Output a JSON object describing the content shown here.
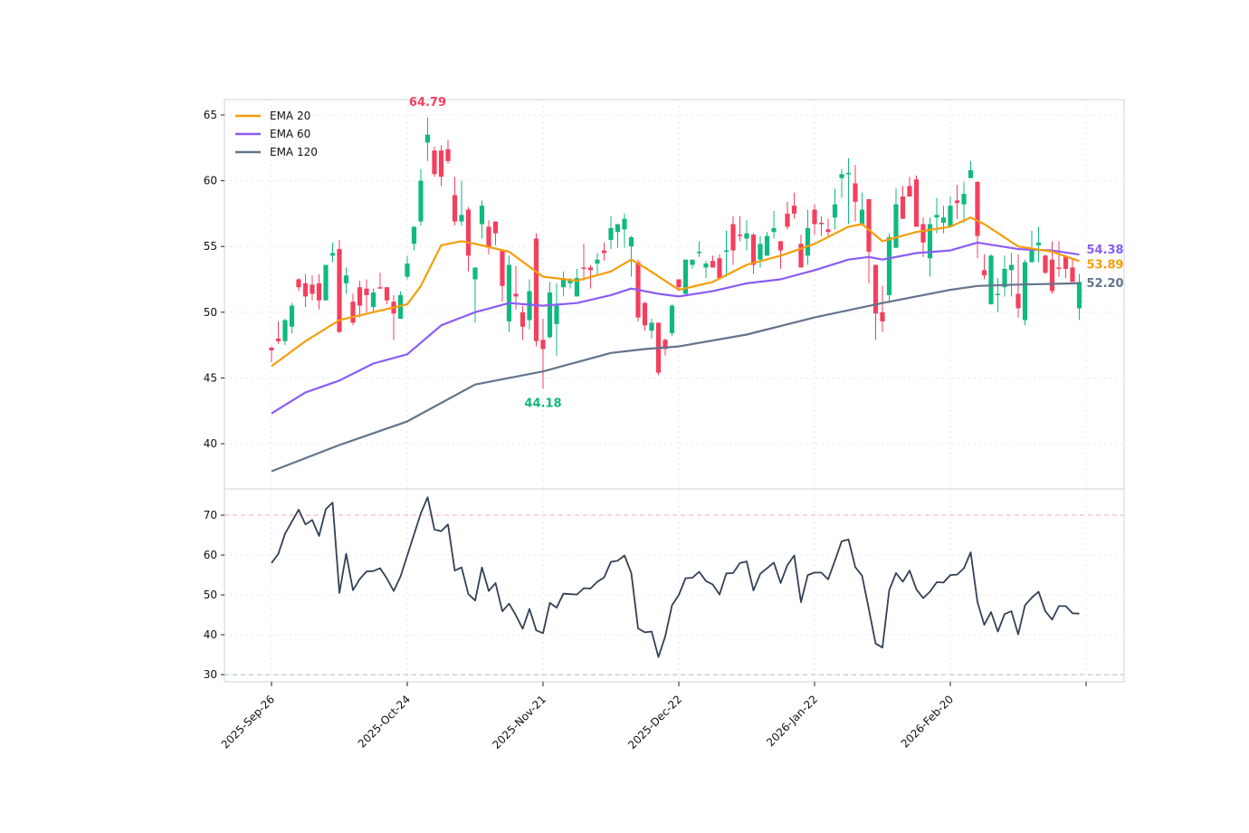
{
  "chart_data": {
    "type": "candlestick",
    "colors": {
      "up": "#10b981",
      "down": "#f43f5e",
      "ema20": "#f59e0b",
      "ema60": "#8b5cf6",
      "ema120": "#64748b",
      "rsi": "#334155",
      "rsi_overbought": "#f3a9b6",
      "rsi_oversold": "#a9bccb",
      "frame": "#cbd5e1",
      "grid": "#e5e7eb"
    },
    "price_panel": {
      "ylim": [
        36.56,
        66.17
      ],
      "yticks": [
        40,
        45,
        50,
        55,
        60,
        65
      ],
      "grid": true,
      "legend_placement": "top-left",
      "legend": [
        {
          "key": "ema20",
          "label": "EMA 20"
        },
        {
          "key": "ema60",
          "label": "EMA 60"
        },
        {
          "key": "ema120",
          "label": "EMA 120"
        }
      ],
      "candles_ohlc": [
        [
          47.3,
          47.4,
          46.2,
          47.1
        ],
        [
          48.0,
          49.3,
          47.6,
          47.8
        ],
        [
          47.8,
          49.5,
          47.5,
          49.4
        ],
        [
          48.9,
          50.7,
          48.4,
          50.5
        ],
        [
          52.5,
          52.6,
          51.6,
          51.9
        ],
        [
          52.2,
          52.9,
          50.4,
          51.2
        ],
        [
          52.1,
          52.8,
          50.9,
          51.4
        ],
        [
          52.2,
          52.9,
          50.2,
          50.9
        ],
        [
          50.9,
          53.6,
          50.9,
          53.6
        ],
        [
          54.3,
          55.3,
          53.8,
          54.5
        ],
        [
          54.8,
          55.5,
          48.4,
          48.5
        ],
        [
          52.2,
          53.4,
          51.4,
          52.8
        ],
        [
          50.8,
          51.4,
          49.0,
          49.2
        ],
        [
          51.9,
          52.4,
          49.6,
          50.5
        ],
        [
          51.8,
          52.5,
          50.0,
          51.3
        ],
        [
          50.4,
          51.8,
          50.0,
          51.5
        ],
        [
          51.9,
          53.0,
          51.8,
          51.8
        ],
        [
          51.9,
          51.9,
          50.6,
          50.9
        ],
        [
          50.8,
          51.3,
          47.9,
          49.9
        ],
        [
          49.5,
          51.6,
          49.5,
          51.3
        ],
        [
          52.7,
          54.3,
          52.5,
          53.7
        ],
        [
          55.2,
          56.5,
          54.7,
          56.5
        ],
        [
          56.9,
          60.9,
          56.6,
          60.0
        ],
        [
          62.9,
          64.79,
          61.5,
          63.5
        ],
        [
          62.3,
          62.6,
          60.3,
          60.5
        ],
        [
          62.3,
          62.7,
          59.6,
          60.3
        ],
        [
          62.4,
          63.1,
          61.3,
          61.5
        ],
        [
          58.9,
          60.3,
          56.6,
          56.9
        ],
        [
          56.9,
          60.0,
          56.6,
          57.4
        ],
        [
          57.8,
          58.0,
          53.1,
          54.3
        ],
        [
          52.5,
          53.4,
          49.2,
          53.4
        ],
        [
          56.7,
          58.5,
          55.6,
          58.1
        ],
        [
          56.5,
          57.0,
          54.4,
          54.9
        ],
        [
          56.9,
          56.9,
          55.1,
          56.0
        ],
        [
          54.7,
          54.7,
          50.8,
          52.0
        ],
        [
          49.3,
          54.3,
          48.5,
          53.6
        ],
        [
          51.4,
          53.5,
          50.2,
          51.2
        ],
        [
          50.0,
          50.5,
          47.9,
          48.9
        ],
        [
          49.4,
          52.5,
          48.7,
          51.6
        ],
        [
          55.6,
          56.0,
          47.4,
          47.8
        ],
        [
          47.9,
          49.5,
          44.18,
          47.2
        ],
        [
          48.1,
          52.3,
          48.0,
          51.5
        ],
        [
          49.1,
          52.2,
          46.7,
          50.5
        ],
        [
          51.9,
          53.1,
          51.2,
          52.6
        ],
        [
          52.2,
          52.6,
          51.8,
          52.5
        ],
        [
          51.2,
          53.3,
          51.2,
          52.6
        ],
        [
          53.4,
          55.2,
          52.4,
          53.3
        ],
        [
          53.4,
          53.6,
          51.8,
          53.2
        ],
        [
          53.7,
          54.5,
          52.8,
          54.0
        ],
        [
          54.7,
          55.3,
          53.9,
          54.5
        ],
        [
          55.5,
          57.3,
          54.8,
          56.4
        ],
        [
          56.1,
          56.7,
          54.9,
          56.7
        ],
        [
          56.3,
          57.5,
          54.9,
          57.1
        ],
        [
          55.0,
          55.8,
          52.7,
          55.7
        ],
        [
          53.8,
          54.0,
          49.3,
          49.6
        ],
        [
          50.7,
          50.8,
          48.6,
          49.0
        ],
        [
          48.6,
          49.5,
          48.0,
          49.2
        ],
        [
          49.2,
          49.2,
          45.2,
          45.4
        ],
        [
          47.9,
          48.0,
          46.7,
          47.2
        ],
        [
          48.4,
          50.6,
          48.2,
          50.5
        ],
        [
          52.5,
          52.5,
          51.6,
          51.9
        ],
        [
          51.4,
          54.0,
          51.2,
          54.0
        ],
        [
          53.6,
          54.0,
          53.3,
          54.0
        ],
        [
          54.5,
          55.4,
          54.2,
          54.6
        ],
        [
          53.4,
          53.9,
          52.6,
          53.7
        ],
        [
          53.9,
          54.3,
          53.4,
          53.4
        ],
        [
          54.1,
          54.4,
          52.6,
          52.6
        ],
        [
          54.6,
          56.2,
          52.7,
          54.7
        ],
        [
          56.7,
          57.3,
          53.6,
          54.7
        ],
        [
          55.9,
          57.3,
          55.4,
          55.8
        ],
        [
          55.6,
          57.0,
          54.7,
          56.0
        ],
        [
          55.9,
          56.0,
          52.9,
          53.6
        ],
        [
          54.0,
          55.8,
          53.4,
          55.2
        ],
        [
          54.3,
          56.1,
          54.3,
          55.8
        ],
        [
          56.1,
          57.7,
          55.6,
          56.4
        ],
        [
          55.4,
          55.4,
          53.3,
          54.7
        ],
        [
          57.5,
          58.4,
          56.3,
          56.5
        ],
        [
          58.1,
          59.1,
          57.1,
          57.5
        ],
        [
          55.2,
          55.9,
          53.4,
          53.4
        ],
        [
          54.3,
          57.8,
          53.6,
          56.4
        ],
        [
          57.8,
          58.2,
          55.9,
          56.7
        ],
        [
          56.8,
          57.3,
          55.8,
          56.7
        ],
        [
          56.3,
          57.1,
          55.8,
          56.1
        ],
        [
          57.2,
          59.4,
          56.3,
          58.2
        ],
        [
          60.2,
          60.9,
          58.7,
          60.5
        ],
        [
          60.5,
          61.7,
          56.7,
          60.6
        ],
        [
          59.8,
          61.2,
          56.9,
          58.4
        ],
        [
          56.7,
          59.1,
          56.7,
          57.8
        ],
        [
          58.6,
          58.6,
          52.2,
          54.6
        ],
        [
          53.6,
          53.6,
          47.9,
          49.9
        ],
        [
          50.0,
          52.0,
          48.5,
          49.3
        ],
        [
          51.3,
          56.0,
          50.7,
          55.7
        ],
        [
          54.9,
          59.4,
          54.9,
          58.2
        ],
        [
          58.8,
          59.6,
          57.1,
          57.1
        ],
        [
          59.6,
          60.3,
          58.8,
          58.8
        ],
        [
          60.1,
          60.4,
          56.5,
          56.5
        ],
        [
          56.7,
          57.2,
          54.2,
          55.3
        ],
        [
          54.1,
          57.2,
          52.7,
          56.7
        ],
        [
          57.2,
          58.7,
          56.0,
          57.4
        ],
        [
          56.8,
          58.1,
          56.0,
          57.2
        ],
        [
          56.5,
          58.8,
          56.5,
          58.1
        ],
        [
          58.5,
          59.7,
          57.1,
          58.3
        ],
        [
          58.2,
          59.9,
          56.8,
          59.0
        ],
        [
          60.2,
          61.5,
          60.2,
          60.8
        ],
        [
          59.9,
          60.0,
          54.1,
          55.8
        ],
        [
          53.2,
          54.4,
          52.5,
          52.8
        ],
        [
          50.6,
          54.4,
          50.6,
          54.3
        ],
        [
          51.3,
          52.6,
          50.0,
          51.4
        ],
        [
          51.9,
          54.3,
          51.2,
          53.3
        ],
        [
          53.2,
          54.5,
          51.2,
          53.6
        ],
        [
          51.4,
          54.4,
          49.6,
          50.3
        ],
        [
          49.4,
          54.0,
          49.0,
          53.8
        ],
        [
          53.8,
          56.2,
          53.8,
          54.8
        ],
        [
          55.1,
          56.5,
          53.8,
          55.3
        ],
        [
          54.3,
          54.4,
          52.9,
          53.0
        ],
        [
          54.0,
          55.4,
          51.4,
          51.6
        ],
        [
          53.4,
          55.4,
          52.7,
          53.3
        ],
        [
          54.3,
          54.3,
          52.6,
          53.3
        ],
        [
          53.4,
          54.0,
          52.3,
          52.3
        ],
        [
          50.3,
          52.9,
          49.4,
          52.3
        ]
      ],
      "ema20": [
        [
          0,
          45.9
        ],
        [
          5,
          47.8
        ],
        [
          10,
          49.4
        ],
        [
          15,
          50.0
        ],
        [
          20,
          50.6
        ],
        [
          22,
          52.0
        ],
        [
          25,
          55.1
        ],
        [
          28,
          55.4
        ],
        [
          30,
          55.2
        ],
        [
          35,
          54.6
        ],
        [
          40,
          52.7
        ],
        [
          45,
          52.4
        ],
        [
          50,
          53.1
        ],
        [
          53,
          54.0
        ],
        [
          55,
          53.4
        ],
        [
          60,
          51.7
        ],
        [
          65,
          52.3
        ],
        [
          70,
          53.6
        ],
        [
          75,
          54.3
        ],
        [
          80,
          55.2
        ],
        [
          85,
          56.5
        ],
        [
          87,
          56.7
        ],
        [
          90,
          55.4
        ],
        [
          95,
          56.1
        ],
        [
          100,
          56.5
        ],
        [
          103,
          57.2
        ],
        [
          105,
          56.7
        ],
        [
          110,
          55.0
        ],
        [
          115,
          54.6
        ],
        [
          119,
          53.89
        ]
      ],
      "ema60": [
        [
          0,
          42.3
        ],
        [
          5,
          43.9
        ],
        [
          10,
          44.8
        ],
        [
          15,
          46.1
        ],
        [
          20,
          46.8
        ],
        [
          25,
          49.0
        ],
        [
          30,
          50.0
        ],
        [
          35,
          50.7
        ],
        [
          40,
          50.5
        ],
        [
          45,
          50.7
        ],
        [
          50,
          51.3
        ],
        [
          53,
          51.8
        ],
        [
          57,
          51.4
        ],
        [
          60,
          51.2
        ],
        [
          65,
          51.6
        ],
        [
          70,
          52.2
        ],
        [
          75,
          52.5
        ],
        [
          80,
          53.2
        ],
        [
          85,
          54.0
        ],
        [
          88,
          54.2
        ],
        [
          90,
          54.0
        ],
        [
          95,
          54.5
        ],
        [
          100,
          54.7
        ],
        [
          104,
          55.3
        ],
        [
          110,
          54.8
        ],
        [
          115,
          54.7
        ],
        [
          119,
          54.38
        ]
      ],
      "ema120": [
        [
          0,
          37.9
        ],
        [
          10,
          39.9
        ],
        [
          20,
          41.7
        ],
        [
          30,
          44.5
        ],
        [
          40,
          45.5
        ],
        [
          50,
          46.9
        ],
        [
          55,
          47.2
        ],
        [
          60,
          47.4
        ],
        [
          70,
          48.3
        ],
        [
          80,
          49.6
        ],
        [
          90,
          50.7
        ],
        [
          100,
          51.7
        ],
        [
          104,
          52.0
        ],
        [
          110,
          52.1
        ],
        [
          119,
          52.2
        ]
      ],
      "annotations": {
        "max": {
          "index": 23,
          "label": "64.79"
        },
        "min": {
          "index": 40,
          "label": "44.18"
        }
      },
      "last_value_labels": {
        "ema60": "54.38",
        "ema20": "53.89",
        "ema120": "52.20"
      }
    },
    "rsi_panel": {
      "ylim": [
        28.2,
        76.6
      ],
      "yticks": [
        30,
        40,
        50,
        60,
        70
      ],
      "levels": [
        70,
        30
      ],
      "grid": true,
      "values": [
        58.0,
        60.3,
        65.4,
        68.4,
        71.4,
        67.7,
        68.8,
        64.8,
        71.5,
        73.2,
        50.5,
        60.3,
        51.2,
        54.0,
        55.9,
        56.0,
        56.7,
        54.1,
        51.0,
        54.6,
        59.9,
        65.2,
        70.5,
        74.5,
        66.4,
        66.0,
        67.7,
        56.1,
        56.9,
        50.2,
        48.6,
        56.9,
        51.0,
        53.0,
        45.9,
        47.8,
        44.9,
        41.5,
        46.5,
        41.1,
        40.4,
        48.0,
        46.8,
        50.3,
        50.2,
        50.1,
        51.7,
        51.6,
        53.3,
        54.4,
        58.3,
        58.6,
        59.9,
        55.5,
        41.6,
        40.6,
        40.8,
        34.4,
        39.6,
        47.4,
        50.0,
        54.2,
        54.3,
        55.8,
        53.5,
        52.6,
        50.1,
        55.4,
        55.5,
        58.0,
        58.4,
        51.1,
        55.3,
        56.7,
        58.1,
        53.0,
        57.5,
        59.9,
        48.2,
        55.0,
        55.6,
        55.6,
        53.9,
        58.6,
        63.5,
        63.9,
        57.0,
        54.8,
        46.4,
        37.8,
        36.8,
        51.2,
        55.5,
        53.3,
        56.1,
        51.4,
        49.2,
        50.8,
        53.2,
        53.1,
        55.0,
        55.1,
        56.7,
        60.7,
        48.2,
        42.5,
        45.7,
        40.8,
        45.2,
        45.9,
        40.1,
        47.4,
        49.3,
        50.8,
        45.9,
        43.8,
        47.2,
        47.2,
        45.4,
        45.3
      ]
    },
    "x_axis": {
      "range": [
        -6.93,
        125.6
      ],
      "ticks": [
        {
          "index": 0,
          "label": "2025-Sep-26"
        },
        {
          "index": 20,
          "label": "2025-Oct-24"
        },
        {
          "index": 40,
          "label": "2025-Nov-21"
        },
        {
          "index": 60,
          "label": "2025-Dec-22"
        },
        {
          "index": 80,
          "label": "2026-Jan-22"
        },
        {
          "index": 100,
          "label": "2026-Feb-20"
        },
        {
          "index": 120,
          "label": ""
        }
      ]
    }
  }
}
